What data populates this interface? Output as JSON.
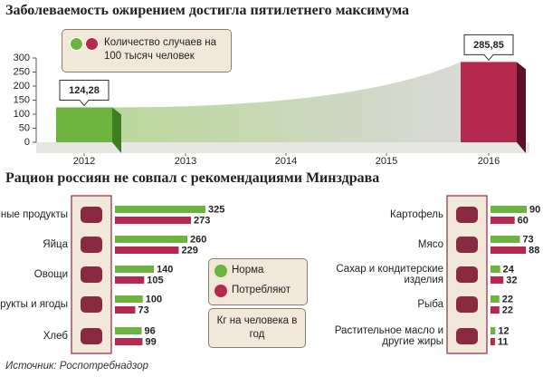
{
  "chart_data": [
    {
      "type": "bar3d",
      "title": "Заболеваемость ожирением достигла пятилетнего максимума",
      "legend_label": "Количество случаев на 100 тысяч человек",
      "legend_colors": [
        "#6cb33f",
        "#b5294e"
      ],
      "categories": [
        "2012",
        "2013",
        "2014",
        "2015",
        "2016"
      ],
      "values": [
        124.28,
        null,
        null,
        null,
        285.85
      ],
      "value_labels": [
        "124,28",
        null,
        null,
        null,
        "285,85"
      ],
      "colors": [
        "#6cb33f",
        null,
        null,
        null,
        "#b5294e"
      ],
      "ylim": [
        0,
        300
      ],
      "yticks": [
        0,
        50,
        100,
        150,
        200,
        250,
        300
      ]
    },
    {
      "type": "hbar_pairs",
      "title": "Рацион россиян не совпал с рекомендациями Минздрава",
      "categories": [
        "Молочные продукты",
        "Яйца",
        "Овощи",
        "Фрукты и ягоды",
        "Хлеб",
        "Картофель",
        "Мясо",
        "Сахар и кондитерские изделия",
        "Рыба",
        "Растительное масло и другие жиры"
      ],
      "series": [
        {
          "name": "Норма",
          "color": "#6cb33f",
          "values": [
            325,
            260,
            140,
            100,
            96,
            90,
            73,
            24,
            22,
            12
          ]
        },
        {
          "name": "Потребляют",
          "color": "#b5294e",
          "values": [
            273,
            229,
            105,
            73,
            99,
            60,
            88,
            32,
            22,
            11
          ]
        }
      ],
      "unit_note": "Кг на человека в год",
      "source": "Источник: Роспотребнадзор"
    }
  ]
}
